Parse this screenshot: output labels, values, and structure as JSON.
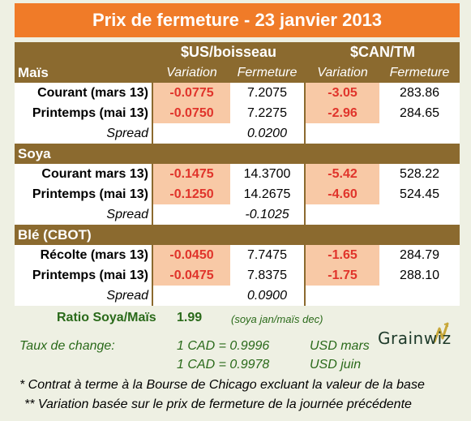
{
  "title": "Prix de fermeture - 23 janvier 2013",
  "headers": {
    "usd_unit": "$US/boisseau",
    "cad_unit": "$CAN/TM",
    "variation": "Variation",
    "fermeture": "Fermeture"
  },
  "sections": [
    {
      "name": "Maïs",
      "rows": [
        {
          "label": "Courant (mars 13)",
          "usd_var": "-0.0775",
          "usd_close": "7.2075",
          "cad_var": "-3.05",
          "cad_close": "283.86"
        },
        {
          "label": "Printemps (mai 13)",
          "usd_var": "-0.0750",
          "usd_close": "7.2275",
          "cad_var": "-2.96",
          "cad_close": "284.65"
        }
      ],
      "spread_label": "Spread",
      "spread_value": "0.0200"
    },
    {
      "name": "Soya",
      "rows": [
        {
          "label": "Courant mars 13)",
          "usd_var": "-0.1475",
          "usd_close": "14.3700",
          "cad_var": "-5.42",
          "cad_close": "528.22"
        },
        {
          "label": "Printemps (mai 13)",
          "usd_var": "-0.1250",
          "usd_close": "14.2675",
          "cad_var": "-4.60",
          "cad_close": "524.45"
        }
      ],
      "spread_label": "Spread",
      "spread_value": "-0.1025"
    },
    {
      "name": "Blé (CBOT)",
      "rows": [
        {
          "label": "Récolte (mars 13)",
          "usd_var": "-0.0450",
          "usd_close": "7.7475",
          "cad_var": "-1.65",
          "cad_close": "284.79"
        },
        {
          "label": "Printemps (mai 13)",
          "usd_var": "-0.0475",
          "usd_close": "7.8375",
          "cad_var": "-1.75",
          "cad_close": "288.10"
        }
      ],
      "spread_label": "Spread",
      "spread_value": "0.0900"
    }
  ],
  "ratio": {
    "label": "Ratio Soya/Maïs",
    "value": "1.99",
    "note": "(soya jan/maïs dec)"
  },
  "exchange": {
    "label": "Taux de change:",
    "rate1": "1 CAD =  0.9996",
    "rate1_unit": "USD mars",
    "rate2": "1 CAD =  0.9978",
    "rate2_unit": "USD juin"
  },
  "notes": {
    "note1": "* Contrat à terme à la Bourse de Chicago excluant la valeur de la base",
    "note2": "** Variation basée sur le prix de fermeture de la journée précédente"
  },
  "logo": {
    "text": "Grainwiz"
  },
  "colors": {
    "title_bg": "#f07b28",
    "header_bg": "#8b6a2f",
    "variation_bg": "#f8c9a6",
    "variation_text": "#e0342b",
    "footer_text": "#2a6a1a"
  }
}
